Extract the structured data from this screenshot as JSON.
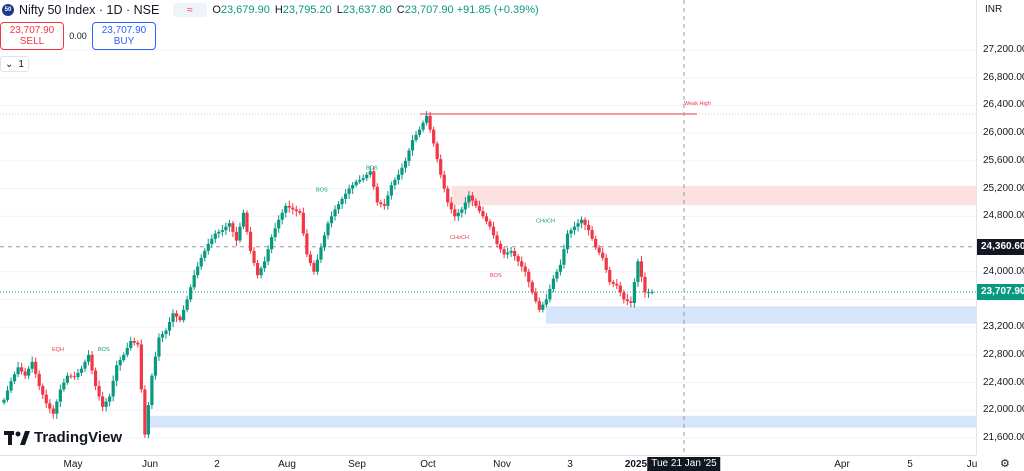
{
  "legend": {
    "logo_text": "50",
    "symbol": "Nifty 50 Index · 1D · NSE",
    "compare_icon": "≈",
    "ohlc": [
      {
        "k": "O",
        "v": "23,679.90"
      },
      {
        "k": "H",
        "v": "23,795.20"
      },
      {
        "k": "L",
        "v": "23,637.80"
      },
      {
        "k": "C",
        "v": "23,707.90 +91.85 (+0.39%)"
      }
    ]
  },
  "trade": {
    "sell_price": "23,707.90",
    "sell_label": "SELL",
    "spread": "0.00",
    "buy_price": "23,707.90",
    "buy_label": "BUY"
  },
  "collapse": {
    "icon": "chevron-down-icon",
    "glyph": "⌄",
    "count": "1"
  },
  "branding": {
    "logo": "TradingView"
  },
  "price_axis": {
    "currency": "INR",
    "ticks": [
      "27,200.00",
      "26,800.00",
      "26,400.00",
      "26,000.00",
      "25,600.00",
      "25,200.00",
      "24,800.00",
      "24,360.60",
      "24,000.00",
      "23,707.90",
      "23,200.00",
      "22,800.00",
      "22,400.00",
      "22,000.00",
      "21,600.00"
    ],
    "crosshair_price": "24,360.60",
    "last_price": "23,707.90"
  },
  "time_axis": {
    "labels": [
      "May",
      "Jun",
      "2",
      "Aug",
      "Sep",
      "Oct",
      "Nov",
      "3",
      "2025",
      "Apr",
      "5",
      "Ju"
    ],
    "crosshair_date": "Tue 21 Jan '25"
  },
  "annotations": [
    "EQH",
    "BOS",
    "BOS",
    "BOS",
    "CHoCH",
    "BOS",
    "CHoCH",
    "Weak High"
  ],
  "colors": {
    "up": "#089981",
    "down": "#f23645",
    "demand_zone": "#d0e1fb",
    "supply_zone": "#fbdcdc",
    "accent": "#2962ff"
  },
  "chart_data": {
    "type": "candlestick",
    "ylim": [
      21500,
      27500
    ],
    "price_ticks": [
      27200,
      26800,
      26400,
      26000,
      25600,
      25200,
      24800,
      24400,
      24000,
      23600,
      23200,
      22800,
      22400,
      22000,
      21600
    ],
    "last_close": 23707.9,
    "crosshair_price": 24360.6,
    "weak_high": 26277,
    "zones": [
      {
        "kind": "supply",
        "from": 24960,
        "to": 25240
      },
      {
        "kind": "demand",
        "from": 23250,
        "to": 23500
      },
      {
        "kind": "demand",
        "from": 21750,
        "to": 21920
      }
    ],
    "close_path": [
      22150,
      22420,
      22620,
      22500,
      22700,
      22350,
      22100,
      21950,
      22300,
      22500,
      22480,
      22600,
      22800,
      22350,
      22050,
      22200,
      22650,
      22800,
      23000,
      22950,
      21650,
      22500,
      23050,
      23150,
      23400,
      23300,
      23600,
      23950,
      24200,
      24400,
      24550,
      24600,
      24700,
      24450,
      24850,
      24300,
      23950,
      24150,
      24500,
      24750,
      24950,
      24900,
      24850,
      24250,
      24000,
      24350,
      24700,
      24900,
      25050,
      25200,
      25300,
      25350,
      25450,
      25000,
      24950,
      25250,
      25400,
      25600,
      25900,
      26050,
      26250,
      25850,
      25400,
      25000,
      24800,
      24900,
      25100,
      24950,
      24800,
      24650,
      24400,
      24250,
      24300,
      24150,
      24000,
      23700,
      23450,
      23600,
      23900,
      24100,
      24550,
      24650,
      24750,
      24600,
      24350,
      24200,
      23850,
      23800,
      23600,
      23550,
      24150,
      23700,
      23708
    ]
  }
}
